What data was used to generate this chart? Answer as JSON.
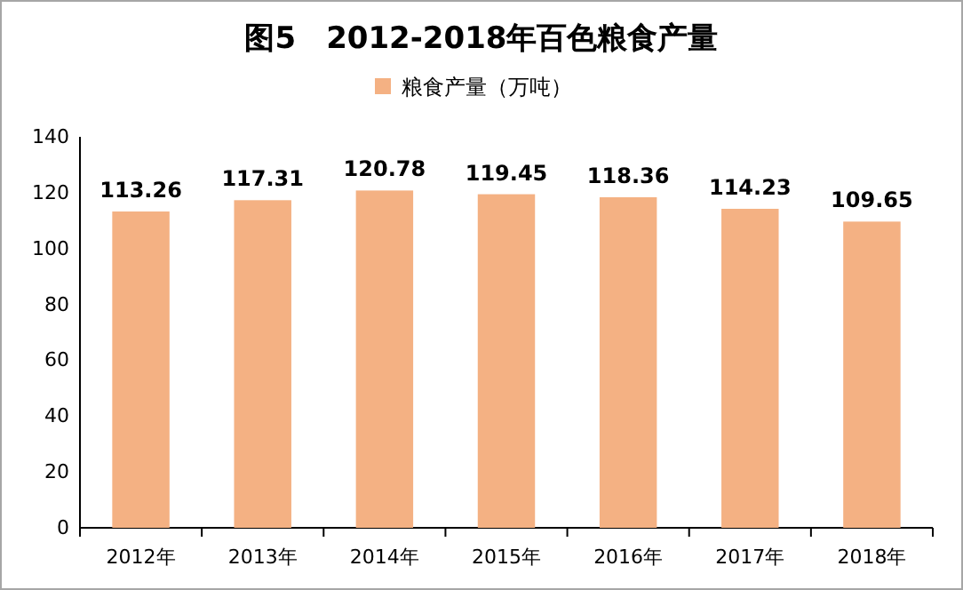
{
  "chart_data": {
    "type": "bar",
    "title": "图5　2012-2018年百色粮食产量",
    "categories": [
      "2012年",
      "2013年",
      "2014年",
      "2015年",
      "2016年",
      "2017年",
      "2018年"
    ],
    "series": [
      {
        "name": "粮食产量（万吨）",
        "color": "#f4b183",
        "values": [
          113.26,
          117.31,
          120.78,
          119.45,
          118.36,
          114.23,
          109.65
        ]
      }
    ],
    "ylim": [
      0,
      140
    ],
    "yticks": [
      0,
      20,
      40,
      60,
      80,
      100,
      120,
      140
    ],
    "data_labels": true,
    "legend": "top"
  }
}
